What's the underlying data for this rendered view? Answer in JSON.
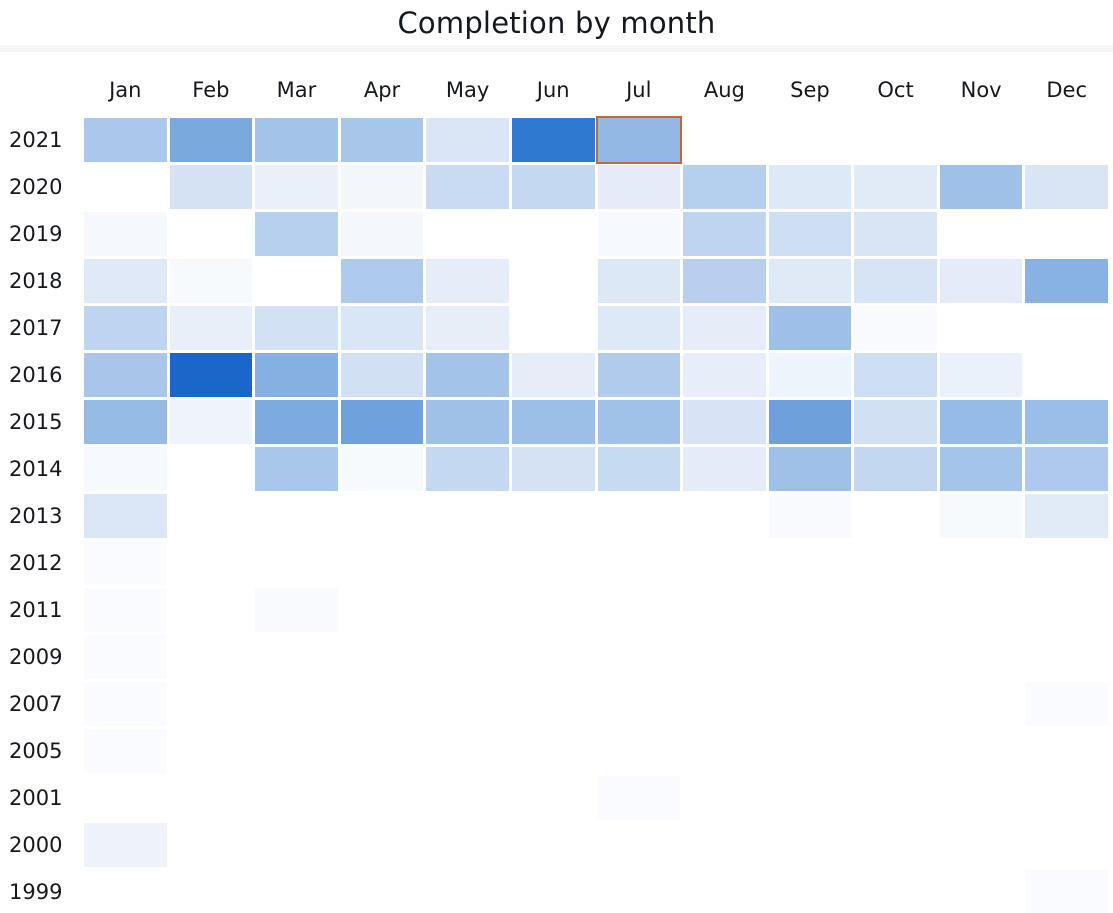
{
  "title": "Completion by month",
  "chart_data": {
    "type": "heatmap",
    "title": "Completion by month",
    "x_categories": [
      "Jan",
      "Feb",
      "Mar",
      "Apr",
      "May",
      "Jun",
      "Jul",
      "Aug",
      "Sep",
      "Oct",
      "Nov",
      "Dec"
    ],
    "y_categories": [
      "2021",
      "2020",
      "2019",
      "2018",
      "2017",
      "2016",
      "2015",
      "2014",
      "2013",
      "2012",
      "2011",
      "2009",
      "2007",
      "2005",
      "2001",
      "2000",
      "1999"
    ],
    "legend": "none",
    "grid": "off",
    "value_scale_note": "numeric values not labeled on screen; blue cell color intensity encodes relative completion count (white/absent = none, darkest blue = max)",
    "color_scale": {
      "min_color": "#fafbfe",
      "max_color": "#1b66c9",
      "empty": null
    },
    "selected_cell": {
      "year": "2021",
      "month": "Jul",
      "outline_color": "#c0693c"
    },
    "rows": [
      {
        "year": "2021",
        "cells": [
          "#abc8ea",
          "#7aa9de",
          "#a4c3e8",
          "#a8c6e9",
          "#dae6f5",
          "#3079d1",
          "#93b8e4",
          null,
          null,
          null,
          null,
          null
        ]
      },
      {
        "year": "2020",
        "cells": [
          null,
          "#d4e2f4",
          "#e9f0fa",
          "#f3f7fc",
          "#c8dbf2",
          "#c4d9f1",
          "#e3ecf8",
          "#b5cfee",
          "#dde9f6",
          "#e1ebf7",
          "#9fc1e8",
          "#d9e5f5"
        ]
      },
      {
        "year": "2019",
        "cells": [
          "#f5f9fd",
          null,
          "#b7d0ee",
          "#f4f8fd",
          null,
          null,
          "#f6f9fe",
          "#bed4f0",
          "#cfdff3",
          "#d9e5f5",
          null,
          null
        ]
      },
      {
        "year": "2018",
        "cells": [
          "#dfe9f7",
          "#f7fafd",
          null,
          "#aecaec",
          "#e4edf8",
          null,
          "#dce8f6",
          "#b8d0ee",
          "#e0eaf7",
          "#d7e4f5",
          "#e3ecf8",
          "#88b2e2"
        ]
      },
      {
        "year": "2017",
        "cells": [
          "#bed4f0",
          "#e8eff9",
          "#d3e1f4",
          "#d9e6f6",
          "#e6eef8",
          null,
          "#dde9f6",
          "#e4edf8",
          "#9ec0e8",
          "#f8fafe",
          null,
          null
        ]
      },
      {
        "year": "2016",
        "cells": [
          "#a9c6ea",
          "#1b66c9",
          "#85b0e1",
          "#d1e0f3",
          "#a3c3e9",
          "#e5edf8",
          "#b0cbec",
          "#e7eef9",
          "#eef4fb",
          "#cfdff3",
          "#eaf1fa",
          null
        ]
      },
      {
        "year": "2015",
        "cells": [
          "#96bce6",
          "#eff4fb",
          "#7dabdf",
          "#6fa2dc",
          "#9fc1e8",
          "#9cbfe7",
          "#a0c1e8",
          "#d8e4f5",
          "#6ea1db",
          "#d2e0f3",
          "#95bce6",
          "#9abee7"
        ]
      },
      {
        "year": "2014",
        "cells": [
          "#f6f9fe",
          null,
          "#a9c7ea",
          "#f7fafd",
          "#c4d8f1",
          "#d4e2f4",
          "#c6daf1",
          "#e3ecf8",
          "#9fc1e8",
          "#c3d8f0",
          "#a5c4e9",
          "#aec9eb"
        ]
      },
      {
        "year": "2013",
        "cells": [
          "#dbe7f6",
          null,
          null,
          null,
          null,
          null,
          null,
          null,
          "#f8fafe",
          null,
          "#f7fafd",
          "#e1eaf7"
        ]
      },
      {
        "year": "2012",
        "cells": [
          "#f9fbfe",
          null,
          null,
          null,
          null,
          null,
          null,
          null,
          null,
          null,
          null,
          null
        ]
      },
      {
        "year": "2011",
        "cells": [
          "#f9fbfe",
          null,
          "#f8fafd",
          null,
          null,
          null,
          null,
          null,
          null,
          null,
          null,
          null
        ]
      },
      {
        "year": "2009",
        "cells": [
          "#f9fbfe",
          null,
          null,
          null,
          null,
          null,
          null,
          null,
          null,
          null,
          null,
          null
        ]
      },
      {
        "year": "2007",
        "cells": [
          "#f9fbfe",
          null,
          null,
          null,
          null,
          null,
          null,
          null,
          null,
          null,
          null,
          "#fafbfe"
        ]
      },
      {
        "year": "2005",
        "cells": [
          "#f9fbfe",
          null,
          null,
          null,
          null,
          null,
          null,
          null,
          null,
          null,
          null,
          null
        ]
      },
      {
        "year": "2001",
        "cells": [
          null,
          null,
          null,
          null,
          null,
          null,
          "#fafbfe",
          null,
          null,
          null,
          null,
          null
        ]
      },
      {
        "year": "2000",
        "cells": [
          "#eef3fa",
          null,
          null,
          null,
          null,
          null,
          null,
          null,
          null,
          null,
          null,
          null
        ]
      },
      {
        "year": "1999",
        "cells": [
          null,
          null,
          null,
          null,
          null,
          null,
          null,
          null,
          null,
          null,
          null,
          "#fafbfe"
        ]
      }
    ]
  }
}
